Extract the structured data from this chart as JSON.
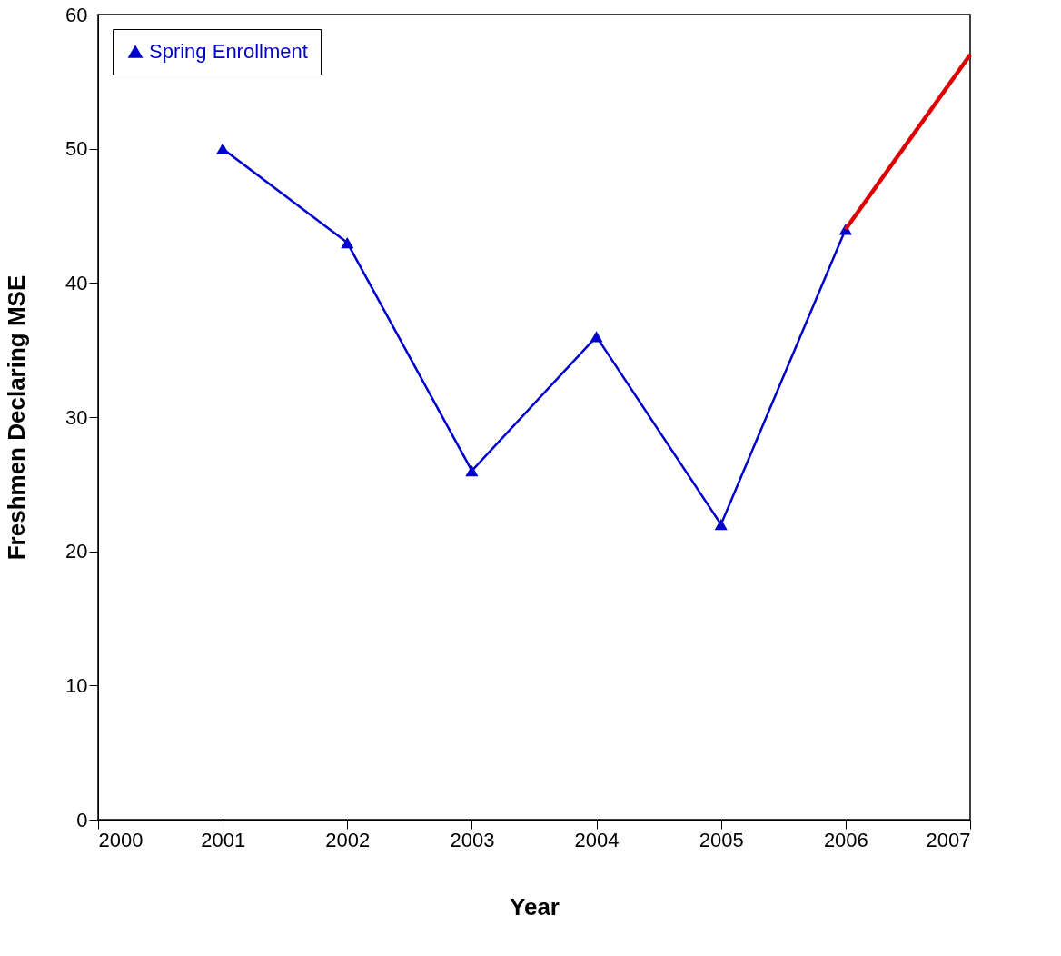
{
  "chart_data": {
    "type": "line",
    "xlabel": "Year",
    "ylabel": "Freshmen Declaring MSE",
    "x": [
      2001,
      2002,
      2003,
      2004,
      2005,
      2006
    ],
    "series": [
      {
        "name": "Spring Enrollment",
        "color": "#0000cc",
        "values": [
          50,
          43,
          26,
          36,
          22,
          44
        ],
        "marker": "triangle"
      },
      {
        "color": "#dd0000",
        "x": [
          2006,
          2007
        ],
        "values": [
          44,
          57
        ],
        "marker": "none"
      }
    ],
    "xlim": [
      2000,
      2007
    ],
    "xticks": [
      2000,
      2001,
      2002,
      2003,
      2004,
      2005,
      2006,
      2007
    ],
    "ylim": [
      0,
      60
    ],
    "yticks": [
      0,
      10,
      20,
      30,
      40,
      50,
      60
    ],
    "grid": false,
    "legend": "top left",
    "line_style": "solid"
  }
}
